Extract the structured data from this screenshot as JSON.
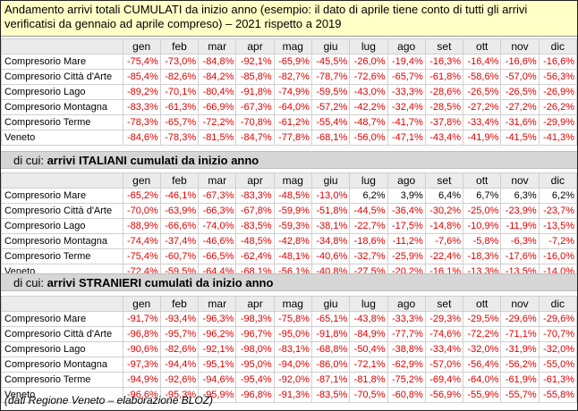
{
  "header": {
    "line1": "Andamento arrivi totali CUMULATI da inizio anno (esempio: il dato di aprile tiene conto di tutti gli arrivi",
    "line2": "verificatisi da gennaio ad aprile compreso) – 2021 rispetto a 2019"
  },
  "months": [
    "gen",
    "feb",
    "mar",
    "apr",
    "mag",
    "giu",
    "lug",
    "ago",
    "set",
    "ott",
    "nov",
    "dic"
  ],
  "colors": {
    "negative": "#e00000",
    "positive": "#000000",
    "header_bg": "#ffffc6",
    "section_bg": "#d6d6d6",
    "month_bg": "#ebebeb"
  },
  "tables": [
    {
      "section_prefix": "",
      "section_title": "",
      "rows": [
        {
          "label": "Compresorio Mare",
          "values": [
            "-75,4%",
            "-73,0%",
            "-84,8%",
            "-92,1%",
            "-65,9%",
            "-45,5%",
            "-26,0%",
            "-19,4%",
            "-16,3%",
            "-16,4%",
            "-16,6%",
            "-16,6%"
          ]
        },
        {
          "label": "Compresorio Città d'Arte",
          "values": [
            "-85,4%",
            "-82,6%",
            "-84,2%",
            "-85,8%",
            "-82,7%",
            "-78,7%",
            "-72,6%",
            "-65,7%",
            "-61,8%",
            "-58,6%",
            "-57,0%",
            "-56,3%"
          ]
        },
        {
          "label": "Compresorio Lago",
          "values": [
            "-89,2%",
            "-70,1%",
            "-80,4%",
            "-91,8%",
            "-74,9%",
            "-59,5%",
            "-43,0%",
            "-33,3%",
            "-28,6%",
            "-26,5%",
            "-26,5%",
            "-26,9%"
          ]
        },
        {
          "label": "Compresorio Montagna",
          "values": [
            "-83,3%",
            "-61,3%",
            "-66,9%",
            "-67,3%",
            "-64,0%",
            "-57,2%",
            "-42,2%",
            "-32,4%",
            "-28,5%",
            "-27,2%",
            "-27,2%",
            "-26,2%"
          ]
        },
        {
          "label": "Compresorio Terme",
          "values": [
            "-78,3%",
            "-65,7%",
            "-72,2%",
            "-70,8%",
            "-61,2%",
            "-55,4%",
            "-48,7%",
            "-41,7%",
            "-37,8%",
            "-33,4%",
            "-31,6%",
            "-29,9%"
          ]
        },
        {
          "label": "Veneto",
          "values": [
            "-84,6%",
            "-78,3%",
            "-81,5%",
            "-84,7%",
            "-77,8%",
            "-68,1%",
            "-56,0%",
            "-47,1%",
            "-43,4%",
            "-41,9%",
            "-41,5%",
            "-41,3%"
          ]
        }
      ]
    },
    {
      "section_prefix": "di cui: ",
      "section_title": "arrivi ITALIANI cumulati da inizio anno",
      "rows": [
        {
          "label": "Compresorio Mare",
          "values": [
            "-65,2%",
            "-46,1%",
            "-67,3%",
            "-83,3%",
            "-48,5%",
            "-13,0%",
            "6,2%",
            "3,9%",
            "6,4%",
            "6,7%",
            "6,3%",
            "6,2%"
          ]
        },
        {
          "label": "Compresorio Città d'Arte",
          "values": [
            "-70,0%",
            "-63,9%",
            "-66,3%",
            "-67,8%",
            "-59,9%",
            "-51,8%",
            "-44,5%",
            "-36,4%",
            "-30,2%",
            "-25,0%",
            "-23,9%",
            "-23,7%"
          ]
        },
        {
          "label": "Compresorio Lago",
          "values": [
            "-88,9%",
            "-66,6%",
            "-74,0%",
            "-83,5%",
            "-59,3%",
            "-38,1%",
            "-22,7%",
            "-17,5%",
            "-14,8%",
            "-10,9%",
            "-11,9%",
            "-13,5%"
          ]
        },
        {
          "label": "Compresorio Montagna",
          "values": [
            "-74,4%",
            "-37,4%",
            "-46,6%",
            "-48,5%",
            "-42,8%",
            "-34,8%",
            "-18,6%",
            "-11,2%",
            "-7,6%",
            "-5,8%",
            "-6,3%",
            "-7,2%"
          ]
        },
        {
          "label": "Compresorio Terme",
          "values": [
            "-75,4%",
            "-60,7%",
            "-66,5%",
            "-62,4%",
            "-48,1%",
            "-40,6%",
            "-32,7%",
            "-25,9%",
            "-22,4%",
            "-18,3%",
            "-17,6%",
            "-16,0%"
          ]
        },
        {
          "label": "Veneto",
          "values": [
            "-72,4%",
            "-59,5%",
            "-64,4%",
            "-68,1%",
            "-56,1%",
            "-40,8%",
            "-27,5%",
            "-20,2%",
            "-16,1%",
            "-13,3%",
            "-13,5%",
            "-14,0%"
          ]
        }
      ]
    },
    {
      "section_prefix": "di cui: ",
      "section_title": "arrivi STRANIERI cumulati da inizio anno",
      "rows": [
        {
          "label": "Compresorio Mare",
          "values": [
            "-91,7%",
            "-93,4%",
            "-96,3%",
            "-98,3%",
            "-75,8%",
            "-65,1%",
            "-43,8%",
            "-33,3%",
            "-29,3%",
            "-29,5%",
            "-29,6%",
            "-29,6%"
          ]
        },
        {
          "label": "Compresorio Città d'Arte",
          "values": [
            "-96,8%",
            "-95,7%",
            "-96,2%",
            "-96,7%",
            "-95,0%",
            "-91,8%",
            "-84,9%",
            "-77,7%",
            "-74,6%",
            "-72,2%",
            "-71,1%",
            "-70,7%"
          ]
        },
        {
          "label": "Compresorio Lago",
          "values": [
            "-90,6%",
            "-82,6%",
            "-92,1%",
            "-98,0%",
            "-83,1%",
            "-68,8%",
            "-50,4%",
            "-38,8%",
            "-33,4%",
            "-32,0%",
            "-31,9%",
            "-32,0%"
          ]
        },
        {
          "label": "Compresorio Montagna",
          "values": [
            "-97,3%",
            "-94,4%",
            "-95,1%",
            "-95,0%",
            "-94,0%",
            "-86,0%",
            "-72,1%",
            "-62,9%",
            "-57,0%",
            "-56,4%",
            "-56,2%",
            "-55,0%"
          ]
        },
        {
          "label": "Compresorio Terme",
          "values": [
            "-94,9%",
            "-92,6%",
            "-94,6%",
            "-95,4%",
            "-92,0%",
            "-87,1%",
            "-81,8%",
            "-75,2%",
            "-69,4%",
            "-64,0%",
            "-61,9%",
            "-61,3%"
          ]
        },
        {
          "label": "Veneto",
          "values": [
            "-96,6%",
            "-95,3%",
            "-95,9%",
            "-96,8%",
            "-91,3%",
            "-83,5%",
            "-70,5%",
            "-60,8%",
            "-56,9%",
            "-55,9%",
            "-55,7%",
            "-55,8%"
          ]
        }
      ]
    }
  ],
  "footer": "(dati Regione Veneto – elaborazione BLOZ)"
}
